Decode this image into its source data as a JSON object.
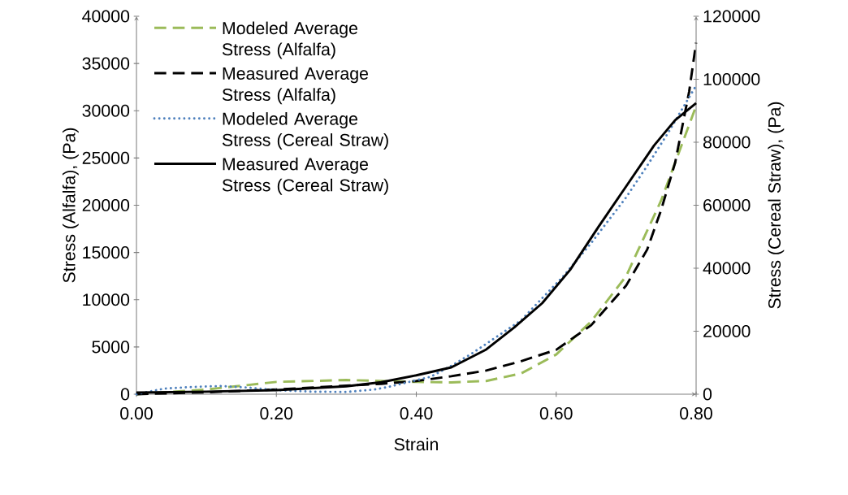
{
  "chart_data": {
    "type": "line",
    "xlabel": "Strain",
    "ylabel": "Stress (Alfalfa), (Pa)",
    "y2label": "Stress (Cereal Straw), (Pa)",
    "xlim": [
      0,
      0.8
    ],
    "xticks": [
      {
        "value": 0,
        "label": "0.00"
      },
      {
        "value": 0.2,
        "label": "0.20"
      },
      {
        "value": 0.4,
        "label": "0.40"
      },
      {
        "value": 0.6,
        "label": "0.60"
      },
      {
        "value": 0.8,
        "label": "0.80"
      }
    ],
    "ylim": [
      0,
      40000
    ],
    "yticks": [
      0,
      5000,
      10000,
      15000,
      20000,
      25000,
      30000,
      35000,
      40000
    ],
    "y2lim": [
      0,
      120000
    ],
    "y2ticks": [
      0,
      20000,
      40000,
      60000,
      80000,
      100000,
      120000
    ],
    "grid": false,
    "legend": "top left",
    "marker": "none",
    "series": [
      {
        "name": "Modeled Average Stress (Alfalfa)",
        "color": "#9bbb59",
        "line_style": "dashed",
        "axis": "y",
        "x": [
          0,
          0.1,
          0.2,
          0.3,
          0.4,
          0.45,
          0.5,
          0.55,
          0.6,
          0.65,
          0.7,
          0.75,
          0.8
        ],
        "values": [
          0,
          500,
          1300,
          1500,
          1300,
          1250,
          1400,
          2200,
          4200,
          7700,
          12500,
          20500,
          30500
        ]
      },
      {
        "name": "Measured Average Stress (Alfalfa)",
        "color": "#000000",
        "line_style": "dashed",
        "axis": "y",
        "x": [
          0,
          0.1,
          0.2,
          0.3,
          0.35,
          0.4,
          0.45,
          0.5,
          0.55,
          0.6,
          0.65,
          0.7,
          0.73,
          0.75,
          0.77,
          0.79,
          0.8
        ],
        "values": [
          0,
          200,
          500,
          900,
          1100,
          1400,
          1900,
          2500,
          3500,
          4700,
          7300,
          11500,
          15300,
          19500,
          24500,
          32000,
          37200
        ]
      },
      {
        "name": "Modeled Average Stress (Cereal Straw)",
        "color": "#4f81bd",
        "line_style": "dotted",
        "axis": "y2",
        "x": [
          0,
          0.04,
          0.08,
          0.12,
          0.16,
          0.2,
          0.25,
          0.3,
          0.34,
          0.36,
          0.39,
          0.42,
          0.45,
          0.48,
          0.51,
          0.55,
          0.58,
          0.61,
          0.65,
          0.7,
          0.73,
          0.76,
          0.8
        ],
        "values": [
          0,
          1800,
          2300,
          2600,
          2100,
          1300,
          800,
          700,
          1500,
          2300,
          3900,
          5500,
          9000,
          13000,
          17500,
          23500,
          30500,
          37400,
          48000,
          62500,
          72500,
          83000,
          98000
        ]
      },
      {
        "name": "Measured Average Stress (Cereal Straw)",
        "color": "#000000",
        "line_style": "solid",
        "axis": "y2",
        "x": [
          0,
          0.1,
          0.2,
          0.3,
          0.35,
          0.4,
          0.45,
          0.5,
          0.54,
          0.58,
          0.62,
          0.66,
          0.7,
          0.74,
          0.77,
          0.8
        ],
        "values": [
          500,
          800,
          1300,
          2500,
          3800,
          6000,
          8500,
          14200,
          21200,
          28900,
          39500,
          53000,
          66000,
          79000,
          87000,
          92400
        ]
      }
    ]
  }
}
